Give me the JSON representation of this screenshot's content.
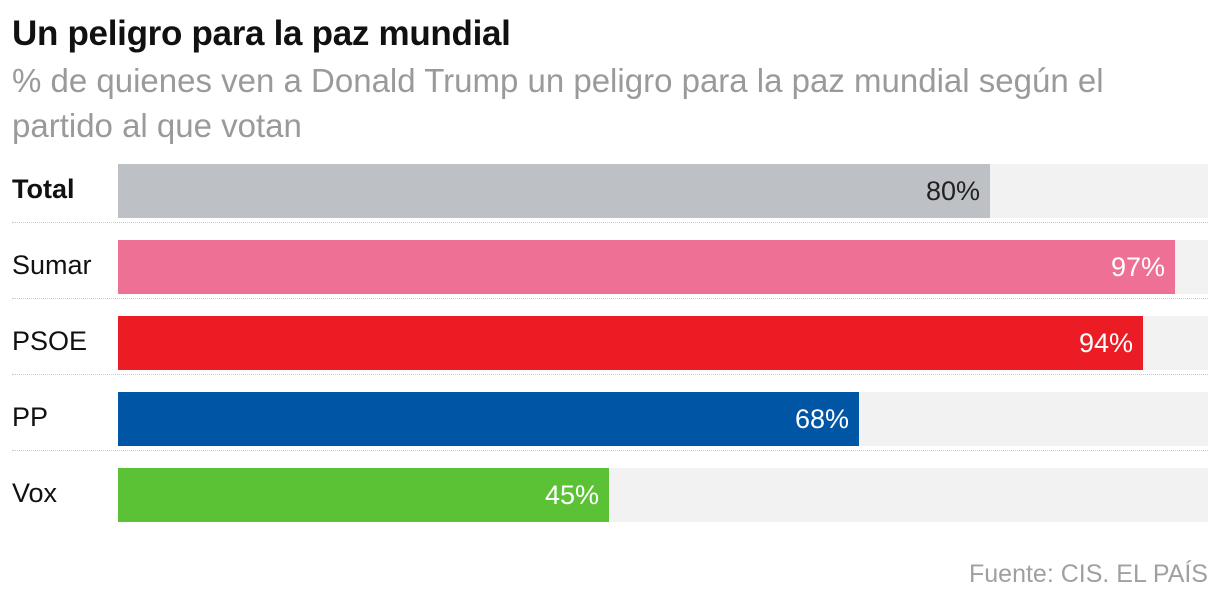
{
  "title": "Un peligro para la paz mundial",
  "subtitle": "% de quienes ven a Donald Trump un peligro para la paz mundial según el partido al que votan",
  "source": "Fuente: CIS. EL PAÍS",
  "chart_data": {
    "type": "bar",
    "orientation": "horizontal",
    "title": "Un peligro para la paz mundial",
    "subtitle": "% de quienes ven a Donald Trump un peligro para la paz mundial según el partido al que votan",
    "categories": [
      "Total",
      "Sumar",
      "PSOE",
      "PP",
      "Vox"
    ],
    "values": [
      80,
      97,
      94,
      68,
      45
    ],
    "value_labels": [
      "80%",
      "97%",
      "94%",
      "68%",
      "45%"
    ],
    "colors": [
      "#bdc1c5",
      "#ee7094",
      "#ec1c24",
      "#0055a4",
      "#5bc236"
    ],
    "label_colors": [
      "#222222",
      "#ffffff",
      "#ffffff",
      "#ffffff",
      "#ffffff"
    ],
    "bold_categories": [
      "Total"
    ],
    "xlim": [
      0,
      100
    ],
    "grid": false,
    "legend": "none",
    "source": "Fuente: CIS. EL PAÍS"
  }
}
